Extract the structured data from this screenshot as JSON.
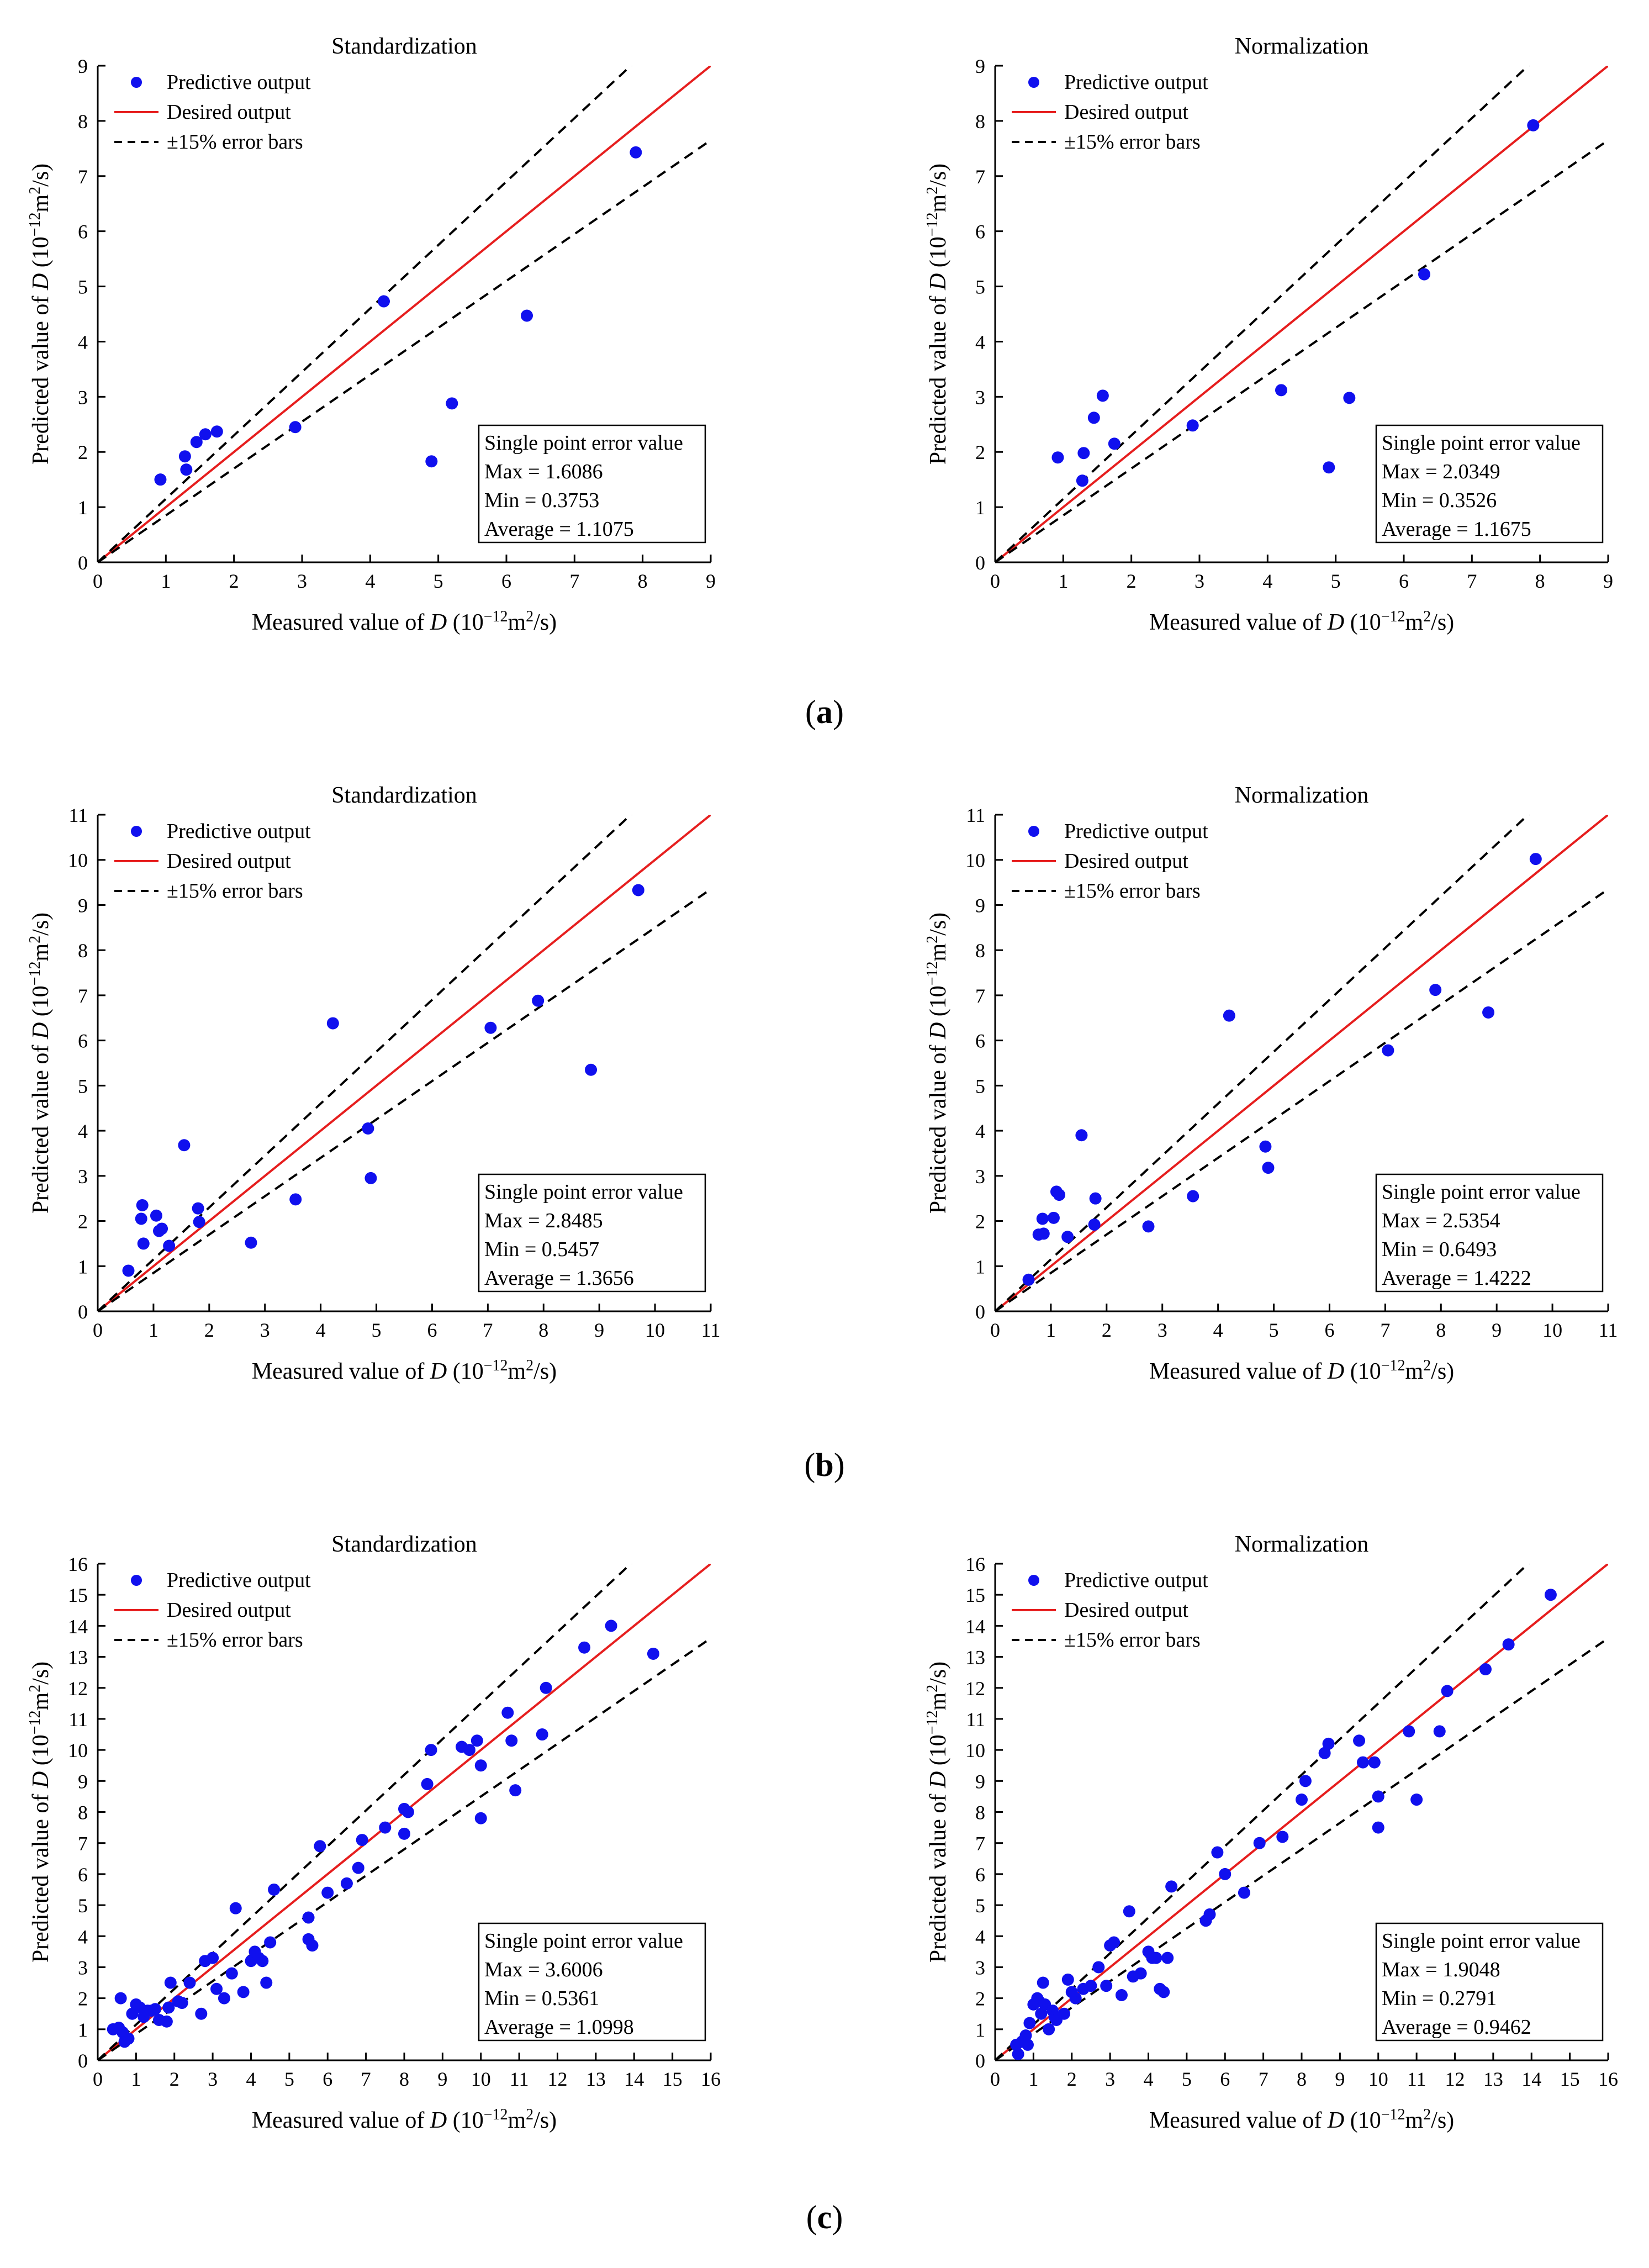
{
  "colors": {
    "point": "#1010ee",
    "desired": "#e61e1e",
    "error_bars": "#000000",
    "axis": "#000000"
  },
  "legend": {
    "predictive": "Predictive output",
    "desired": "Desired output",
    "error_bars": "±15% error bars"
  },
  "error_box_title": "Single point error value",
  "ylabel_text": "Predicted value of ",
  "xlabel_text": "Measured value of ",
  "var": "D",
  "unit_prefix": " (10",
  "unit_exp": "−12",
  "unit_mid": "m",
  "unit_exp2": "2",
  "unit_suffix": "/s)",
  "panel_labels": [
    {
      "open": "(",
      "letter": "a",
      "close": ")"
    },
    {
      "open": "(",
      "letter": "b",
      "close": ")"
    },
    {
      "open": "(",
      "letter": "c",
      "close": ")"
    }
  ],
  "chart_data": [
    {
      "type": "scatter",
      "title": "Standardization",
      "panel": "a",
      "xlim": [
        0,
        9
      ],
      "ylim": [
        0,
        9
      ],
      "ticks": [
        0,
        1,
        2,
        3,
        4,
        5,
        6,
        7,
        8,
        9
      ],
      "error_band": 0.15,
      "stats": {
        "max": "Max = 1.6086",
        "min": "Min = 0.3753",
        "avg": "Average = 1.1075"
      },
      "x": [
        0.92,
        1.28,
        1.3,
        1.45,
        1.58,
        1.75,
        2.9,
        4.2,
        4.9,
        5.2,
        6.3,
        7.9
      ],
      "y": [
        1.5,
        1.92,
        1.68,
        2.18,
        2.32,
        2.37,
        2.45,
        4.73,
        1.83,
        2.88,
        4.47,
        7.43
      ]
    },
    {
      "type": "scatter",
      "title": "Normalization",
      "panel": "a",
      "xlim": [
        0,
        9
      ],
      "ylim": [
        0,
        9
      ],
      "ticks": [
        0,
        1,
        2,
        3,
        4,
        5,
        6,
        7,
        8,
        9
      ],
      "error_band": 0.15,
      "stats": {
        "max": "Max = 2.0349",
        "min": "Min = 0.3526",
        "avg": "Average = 1.1675"
      },
      "x": [
        0.92,
        1.28,
        1.3,
        1.45,
        1.58,
        1.75,
        2.9,
        4.2,
        4.9,
        5.2,
        6.3,
        7.9
      ],
      "y": [
        1.9,
        1.48,
        1.98,
        2.62,
        3.02,
        2.15,
        2.48,
        3.12,
        1.72,
        2.98,
        5.22,
        7.92
      ]
    },
    {
      "type": "scatter",
      "title": "Standardization",
      "panel": "b",
      "xlim": [
        0,
        11
      ],
      "ylim": [
        0,
        11
      ],
      "ticks": [
        0,
        1,
        2,
        3,
        4,
        5,
        6,
        7,
        8,
        9,
        10,
        11
      ],
      "error_band": 0.15,
      "stats": {
        "max": "Max = 2.8485",
        "min": "Min = 0.5457",
        "avg": "Average = 1.3656"
      },
      "x": [
        0.55,
        0.78,
        0.8,
        0.82,
        1.05,
        1.1,
        1.15,
        1.28,
        1.55,
        1.8,
        1.82,
        2.75,
        3.55,
        4.22,
        4.85,
        4.9,
        7.05,
        7.9,
        8.85,
        9.7
      ],
      "y": [
        0.9,
        2.05,
        2.35,
        1.5,
        2.12,
        1.78,
        1.83,
        1.45,
        3.68,
        2.28,
        1.98,
        1.52,
        2.48,
        6.38,
        4.05,
        2.95,
        6.28,
        6.88,
        5.35,
        9.33
      ]
    },
    {
      "type": "scatter",
      "title": "Normalization",
      "panel": "b",
      "xlim": [
        0,
        11
      ],
      "ylim": [
        0,
        11
      ],
      "ticks": [
        0,
        1,
        2,
        3,
        4,
        5,
        6,
        7,
        8,
        9,
        10,
        11
      ],
      "error_band": 0.15,
      "stats": {
        "max": "Max = 2.5354",
        "min": "Min = 0.6493",
        "avg": "Average = 1.4222"
      },
      "x": [
        0.6,
        0.78,
        0.85,
        0.87,
        1.05,
        1.1,
        1.15,
        1.3,
        1.55,
        1.78,
        1.8,
        2.75,
        3.55,
        4.2,
        4.85,
        4.9,
        7.05,
        7.9,
        8.85,
        9.7
      ],
      "y": [
        0.7,
        1.7,
        2.05,
        1.72,
        2.07,
        2.65,
        2.58,
        1.65,
        3.9,
        1.92,
        2.5,
        1.88,
        2.55,
        6.55,
        3.65,
        3.18,
        5.78,
        7.12,
        6.62,
        10.02
      ]
    },
    {
      "type": "scatter",
      "title": "Standardization",
      "panel": "c",
      "xlim": [
        0,
        16
      ],
      "ylim": [
        0,
        16
      ],
      "ticks": [
        0,
        1,
        2,
        3,
        4,
        5,
        6,
        7,
        8,
        9,
        10,
        11,
        12,
        13,
        14,
        15,
        16
      ],
      "error_band": 0.15,
      "stats": {
        "max": "Max = 3.6006",
        "min": "Min = 0.5361",
        "avg": "Average = 1.0998"
      },
      "x": [
        0.4,
        0.55,
        0.6,
        0.65,
        0.7,
        0.8,
        0.9,
        1.0,
        1.1,
        1.2,
        1.3,
        1.4,
        1.5,
        1.6,
        1.8,
        1.85,
        1.9,
        2.1,
        2.2,
        2.4,
        2.7,
        2.8,
        3.0,
        3.1,
        3.3,
        3.5,
        3.6,
        3.8,
        4.0,
        4.1,
        4.2,
        4.3,
        4.4,
        4.5,
        4.6,
        5.5,
        5.5,
        5.6,
        5.8,
        6.0,
        6.5,
        6.8,
        6.9,
        7.5,
        8.0,
        8.0,
        8.1,
        8.6,
        8.7,
        9.5,
        9.7,
        9.9,
        10.0,
        10.0,
        10.7,
        10.8,
        10.9,
        11.6,
        11.7,
        12.7,
        13.4,
        14.5
      ],
      "y": [
        1.0,
        1.05,
        2.0,
        0.9,
        0.6,
        0.7,
        1.5,
        1.8,
        1.7,
        1.4,
        1.6,
        1.6,
        1.65,
        1.3,
        1.25,
        1.7,
        2.5,
        1.9,
        1.85,
        2.5,
        1.5,
        3.2,
        3.3,
        2.3,
        2.0,
        2.8,
        4.9,
        2.2,
        3.2,
        3.5,
        3.3,
        3.2,
        2.5,
        3.8,
        5.5,
        3.9,
        4.6,
        3.7,
        6.9,
        5.4,
        5.7,
        6.2,
        7.1,
        7.5,
        7.3,
        8.1,
        8.0,
        8.9,
        10.0,
        10.1,
        10.0,
        10.3,
        9.5,
        7.8,
        11.2,
        10.3,
        8.7,
        10.5,
        12.0,
        13.3,
        14.0,
        13.1
      ]
    },
    {
      "type": "scatter",
      "title": "Normalization",
      "panel": "c",
      "xlim": [
        0,
        16
      ],
      "ylim": [
        0,
        16
      ],
      "ticks": [
        0,
        1,
        2,
        3,
        4,
        5,
        6,
        7,
        8,
        9,
        10,
        11,
        12,
        13,
        14,
        15,
        16
      ],
      "error_band": 0.15,
      "stats": {
        "max": "Max = 1.9048",
        "min": "Min = 0.2791",
        "avg": "Average = 0.9462"
      },
      "x": [
        0.55,
        0.6,
        0.7,
        0.8,
        0.85,
        0.9,
        1.0,
        1.1,
        1.15,
        1.2,
        1.25,
        1.3,
        1.4,
        1.5,
        1.55,
        1.6,
        1.8,
        1.9,
        2.0,
        2.1,
        2.3,
        2.5,
        2.7,
        2.9,
        3.0,
        3.1,
        3.3,
        3.5,
        3.6,
        3.8,
        4.0,
        4.1,
        4.2,
        4.3,
        4.4,
        4.5,
        4.6,
        5.5,
        5.6,
        5.8,
        6.0,
        6.5,
        6.9,
        7.5,
        8.0,
        8.1,
        8.6,
        8.7,
        9.5,
        9.6,
        9.9,
        10.0,
        10.0,
        10.8,
        11.0,
        11.6,
        11.8,
        12.8,
        13.4,
        14.5
      ],
      "y": [
        0.5,
        0.2,
        0.6,
        0.8,
        0.5,
        1.2,
        1.8,
        2.0,
        1.9,
        1.5,
        2.5,
        1.8,
        1.0,
        1.6,
        1.4,
        1.3,
        1.5,
        2.6,
        2.2,
        2.0,
        2.3,
        2.4,
        3.0,
        2.4,
        3.7,
        3.8,
        2.1,
        4.8,
        2.7,
        2.8,
        3.5,
        3.3,
        3.3,
        2.3,
        2.2,
        3.3,
        5.6,
        4.5,
        4.7,
        6.7,
        6.0,
        5.4,
        7.0,
        7.2,
        8.4,
        9.0,
        9.9,
        10.2,
        10.3,
        9.6,
        9.6,
        8.5,
        7.5,
        10.6,
        8.4,
        10.6,
        11.9,
        12.6,
        13.4,
        15.0
      ]
    }
  ]
}
